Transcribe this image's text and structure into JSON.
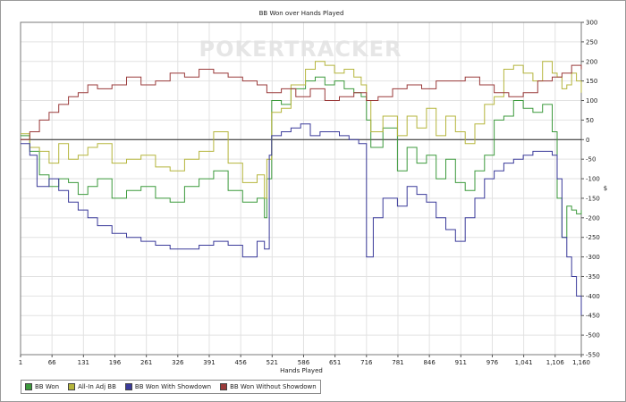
{
  "chart_data": {
    "type": "line",
    "title": "BB Won over Hands Played",
    "xlabel": "Hands Played",
    "ylabel": "$",
    "xlim": [
      1,
      1160
    ],
    "ylim": [
      -550,
      300
    ],
    "x_ticks": [
      1,
      66,
      131,
      196,
      261,
      326,
      391,
      456,
      521,
      586,
      651,
      716,
      781,
      846,
      911,
      976,
      1041,
      1106,
      1160
    ],
    "x_tick_labels": [
      "1",
      "66",
      "131",
      "196",
      "261",
      "326",
      "391",
      "456",
      "521",
      "586",
      "651",
      "716",
      "781",
      "846",
      "911",
      "976",
      "1,041",
      "1,106",
      "1,160"
    ],
    "y_ticks": [
      300,
      250,
      200,
      150,
      100,
      50,
      0,
      -50,
      -100,
      -150,
      -200,
      -250,
      -300,
      -350,
      -400,
      -450,
      -500,
      -550
    ],
    "y_tick_labels": [
      "300",
      "250",
      "200",
      "150",
      "100",
      "50",
      "0",
      "-50",
      "-100",
      "-150",
      "-200",
      "-250",
      "-300",
      "-350",
      "-400",
      "-450",
      "-500",
      "-550"
    ],
    "grid": true,
    "legend_position": "bottom-left",
    "watermark": "POKERTRACKER",
    "series": [
      {
        "name": "BB Won",
        "color": "#3c9a3c",
        "x": [
          1,
          20,
          40,
          60,
          80,
          100,
          120,
          140,
          160,
          190,
          220,
          250,
          280,
          310,
          340,
          370,
          400,
          430,
          460,
          490,
          505,
          510,
          520,
          540,
          560,
          590,
          610,
          630,
          650,
          670,
          690,
          705,
          716,
          725,
          750,
          780,
          800,
          820,
          840,
          860,
          880,
          900,
          920,
          940,
          960,
          980,
          1000,
          1020,
          1040,
          1060,
          1080,
          1100,
          1110,
          1120,
          1130,
          1140,
          1150,
          1160
        ],
        "y": [
          10,
          -30,
          -90,
          -120,
          -100,
          -110,
          -140,
          -120,
          -100,
          -150,
          -130,
          -120,
          -150,
          -160,
          -120,
          -100,
          -80,
          -130,
          -160,
          -150,
          -200,
          -100,
          100,
          90,
          130,
          150,
          160,
          140,
          150,
          130,
          120,
          110,
          50,
          -20,
          30,
          -80,
          -20,
          -60,
          -40,
          -100,
          -50,
          -110,
          -130,
          -80,
          -40,
          50,
          60,
          100,
          80,
          70,
          90,
          20,
          -150,
          -250,
          -170,
          -180,
          -190,
          -180
        ]
      },
      {
        "name": "All-In Adj BB",
        "color": "#b5b53c",
        "x": [
          1,
          20,
          40,
          60,
          80,
          100,
          120,
          140,
          160,
          190,
          220,
          250,
          280,
          310,
          340,
          370,
          400,
          430,
          460,
          490,
          505,
          510,
          520,
          540,
          560,
          590,
          610,
          630,
          650,
          670,
          690,
          705,
          716,
          725,
          750,
          780,
          800,
          820,
          840,
          860,
          880,
          900,
          920,
          940,
          960,
          980,
          1000,
          1020,
          1040,
          1060,
          1080,
          1100,
          1110,
          1120,
          1130,
          1140,
          1150,
          1160
        ],
        "y": [
          15,
          -20,
          -30,
          -60,
          -10,
          -50,
          -40,
          -20,
          -10,
          -60,
          -50,
          -40,
          -70,
          -80,
          -50,
          -30,
          20,
          -60,
          -110,
          -90,
          -150,
          -50,
          70,
          80,
          140,
          180,
          200,
          190,
          170,
          180,
          160,
          140,
          100,
          20,
          60,
          10,
          60,
          30,
          80,
          10,
          60,
          20,
          -10,
          40,
          90,
          110,
          180,
          190,
          170,
          150,
          200,
          170,
          160,
          130,
          140,
          170,
          150,
          120
        ]
      },
      {
        "name": "BB Won With Showdown",
        "color": "#3a3a9a",
        "x": [
          1,
          20,
          35,
          60,
          80,
          100,
          120,
          140,
          160,
          190,
          220,
          250,
          280,
          310,
          340,
          370,
          400,
          430,
          460,
          490,
          505,
          515,
          520,
          540,
          560,
          580,
          600,
          620,
          640,
          660,
          680,
          700,
          716,
          730,
          750,
          780,
          800,
          820,
          840,
          860,
          880,
          900,
          920,
          940,
          960,
          980,
          1000,
          1020,
          1040,
          1060,
          1080,
          1100,
          1110,
          1120,
          1130,
          1140,
          1150,
          1160
        ],
        "y": [
          -10,
          -40,
          -120,
          -100,
          -130,
          -160,
          -180,
          -200,
          -220,
          -240,
          -250,
          -260,
          -270,
          -280,
          -280,
          -270,
          -260,
          -270,
          -300,
          -260,
          -280,
          -40,
          10,
          20,
          30,
          40,
          10,
          20,
          20,
          10,
          0,
          -10,
          -300,
          -200,
          -150,
          -170,
          -120,
          -140,
          -160,
          -200,
          -230,
          -260,
          -200,
          -150,
          -100,
          -80,
          -60,
          -50,
          -40,
          -30,
          -30,
          -40,
          -100,
          -250,
          -300,
          -350,
          -400,
          -450
        ]
      },
      {
        "name": "BB Won Without Showdown",
        "color": "#9a3a3a",
        "x": [
          1,
          20,
          40,
          60,
          80,
          100,
          120,
          140,
          160,
          190,
          220,
          250,
          280,
          310,
          340,
          370,
          400,
          430,
          460,
          490,
          510,
          540,
          570,
          600,
          630,
          660,
          690,
          716,
          740,
          770,
          800,
          830,
          860,
          890,
          920,
          950,
          980,
          1010,
          1040,
          1070,
          1100,
          1120,
          1140,
          1160
        ],
        "y": [
          0,
          20,
          50,
          70,
          90,
          110,
          120,
          140,
          130,
          140,
          160,
          140,
          150,
          170,
          160,
          180,
          170,
          160,
          150,
          140,
          120,
          130,
          110,
          130,
          100,
          110,
          120,
          100,
          110,
          130,
          140,
          130,
          150,
          150,
          160,
          140,
          120,
          110,
          120,
          150,
          160,
          170,
          190,
          180
        ]
      }
    ]
  }
}
